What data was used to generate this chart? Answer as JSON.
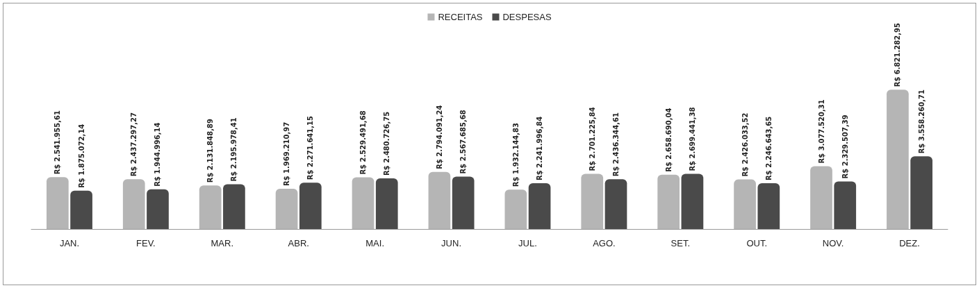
{
  "chart_data": {
    "type": "bar",
    "categories": [
      "JAN.",
      "FEV.",
      "MAR.",
      "ABR.",
      "MAI.",
      "JUN.",
      "JUL.",
      "AGO.",
      "SET.",
      "OUT.",
      "NOV.",
      "DEZ."
    ],
    "series": [
      {
        "name": "RECEITAS",
        "color": "#b5b5b5",
        "values": [
          2541955.61,
          2437297.27,
          2131848.89,
          1969210.97,
          2529491.68,
          2794091.24,
          1932144.83,
          2701225.84,
          2658690.04,
          2426033.52,
          3077520.31,
          6821282.95
        ],
        "value_labels": [
          "R$ 2.541.955,61",
          "R$ 2.437.297,27",
          "R$ 2.131.848,89",
          "R$ 1.969.210,97",
          "R$ 2.529.491,68",
          "R$ 2.794.091,24",
          "R$ 1.932.144,83",
          "R$ 2.701.225,84",
          "R$ 2.658.690,04",
          "R$ 2.426.033,52",
          "R$ 3.077.520,31",
          "R$ 6.821.282,95"
        ]
      },
      {
        "name": "DESPESAS",
        "color": "#4a4a4a",
        "values": [
          1875072.14,
          1944996.14,
          2195978.41,
          2271641.15,
          2480726.75,
          2567685.68,
          2241996.84,
          2436344.61,
          2699441.38,
          2246643.65,
          2329507.39,
          3558260.71
        ],
        "value_labels": [
          "R$ 1.875.072,14",
          "R$ 1.944.996,14",
          "R$ 2.195.978,41",
          "R$ 2.271.641,15",
          "R$ 2.480.726,75",
          "R$ 2.567.685,68",
          "R$ 2.241.996,84",
          "R$ 2.436.344,61",
          "R$ 2.699.441,38",
          "R$ 2.246.643,65",
          "R$ 2.329.507,39",
          "R$ 3.558.260,71"
        ]
      }
    ],
    "legend": "top"
  }
}
